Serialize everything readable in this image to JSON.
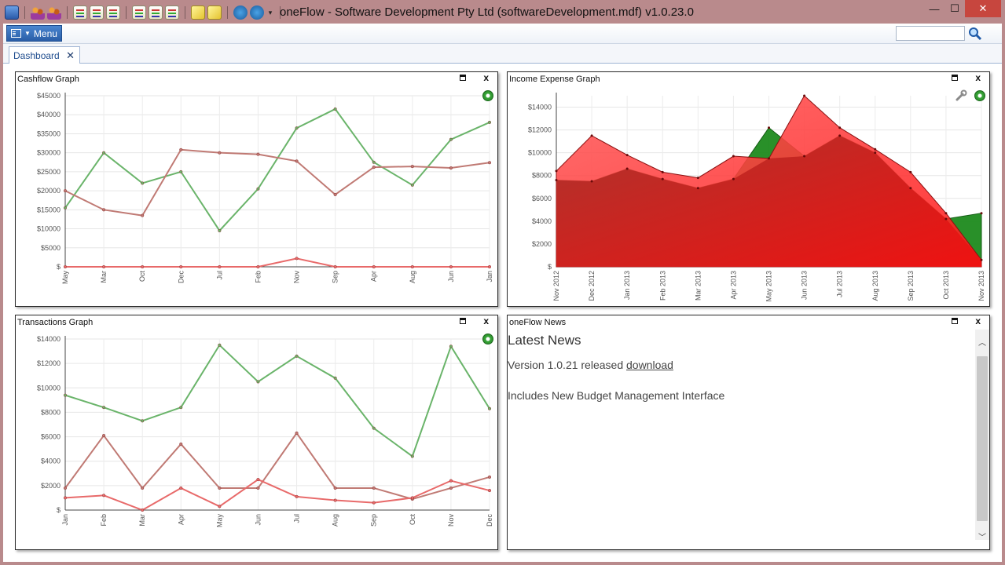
{
  "window": {
    "title": "oneFlow - Software Development Pty Ltd (softwareDevelopment.mdf) v1.0.23.0",
    "min_glyph": "—",
    "max_glyph": "☐",
    "close_glyph": "✕"
  },
  "toolbar": {
    "menu_label": "Menu",
    "search_placeholder": "",
    "icons": [
      "app-icon",
      "people-icon",
      "contacts-icon",
      "document-icon",
      "document-icon",
      "document-icon",
      "list-icon",
      "list-icon",
      "list-icon",
      "notes-icon",
      "notes-icon",
      "globe-icon",
      "email-icon"
    ]
  },
  "tabs": [
    {
      "label": "Dashboard",
      "close": "✕"
    }
  ],
  "panels": {
    "cashflow": {
      "title": "Cashflow Graph",
      "close": "x"
    },
    "income": {
      "title": "Income Expense Graph",
      "close": "x"
    },
    "transactions": {
      "title": "Transactions Graph",
      "close": "x"
    },
    "news": {
      "title": "oneFlow News",
      "close": "x"
    }
  },
  "news": {
    "heading": "Latest News",
    "line1_text": "Version 1.0.21 released ",
    "line1_link": "download",
    "line2": "Includes New Budget Management Interface"
  },
  "colors": {
    "green_line": "#6ab46a",
    "brown_line": "#c07a74",
    "red_line": "#e86a6a",
    "area_red": "#ff3a3a",
    "area_darkred": "#c8281e",
    "area_green": "#1e8a1e"
  },
  "chart_data": [
    {
      "type": "line",
      "categories": [
        "May",
        "Mar",
        "Oct",
        "Dec",
        "Jul",
        "Feb",
        "Nov",
        "Sep",
        "Apr",
        "Aug",
        "Jun",
        "Jan"
      ],
      "ylim": [
        0,
        45000
      ],
      "yticks": [
        "$",
        "$5000",
        "$10000",
        "$15000",
        "$20000",
        "$25000",
        "$30000",
        "$35000",
        "$40000",
        "$45000"
      ],
      "grid": true,
      "series": [
        {
          "color": "#6ab46a",
          "values": [
            15500,
            30000,
            22000,
            25000,
            9500,
            20500,
            36500,
            41500,
            27500,
            21500,
            33500,
            38000
          ]
        },
        {
          "color": "#c07a74",
          "values": [
            20000,
            15000,
            13500,
            30800,
            30000,
            29600,
            27800,
            19000,
            26200,
            26400,
            26000,
            27400
          ]
        },
        {
          "color": "#e86a6a",
          "values": [
            0,
            0,
            0,
            0,
            0,
            0,
            2200,
            0,
            0,
            0,
            0,
            0
          ]
        }
      ]
    },
    {
      "type": "area",
      "categories": [
        "Nov 2012",
        "Dec 2012",
        "Jan 2013",
        "Feb 2013",
        "Mar 2013",
        "Apr 2013",
        "May 2013",
        "Jun 2013",
        "Jul 2013",
        "Aug 2013",
        "Sep 2013",
        "Oct 2013",
        "Nov 2013"
      ],
      "ylim": [
        0,
        15000
      ],
      "yticks": [
        "$",
        "$2000",
        "$4000",
        "$6000",
        "$8000",
        "$10000",
        "$12000",
        "$14000"
      ],
      "grid": true,
      "series": [
        {
          "color": "#1e8a1e",
          "values": [
            7600,
            7500,
            8600,
            7700,
            6900,
            7700,
            12200,
            9700,
            11500,
            10000,
            6900,
            4200,
            4700
          ]
        },
        {
          "color": "#ff3a3a",
          "values": [
            8400,
            11500,
            9800,
            8300,
            7800,
            9700,
            9500,
            15000,
            12200,
            10300,
            8300,
            4700,
            600
          ]
        }
      ]
    },
    {
      "type": "line",
      "categories": [
        "Jan",
        "Feb",
        "Mar",
        "Apr",
        "May",
        "Jun",
        "Jul",
        "Aug",
        "Sep",
        "Oct",
        "Nov",
        "Dec"
      ],
      "ylim": [
        0,
        14000
      ],
      "yticks": [
        "$",
        "$2000",
        "$4000",
        "$6000",
        "$8000",
        "$10000",
        "$12000",
        "$14000"
      ],
      "grid": true,
      "series": [
        {
          "color": "#6ab46a",
          "values": [
            9400,
            8400,
            7300,
            8400,
            13500,
            10500,
            12600,
            10800,
            6700,
            4400,
            13400,
            8300
          ]
        },
        {
          "color": "#c07a74",
          "values": [
            1800,
            6100,
            1800,
            5400,
            1800,
            1800,
            6300,
            1800,
            1800,
            900,
            1800,
            2700
          ]
        },
        {
          "color": "#e86a6a",
          "values": [
            1000,
            1200,
            0,
            1800,
            300,
            2500,
            1100,
            800,
            600,
            1000,
            2400,
            1600
          ]
        }
      ]
    }
  ]
}
